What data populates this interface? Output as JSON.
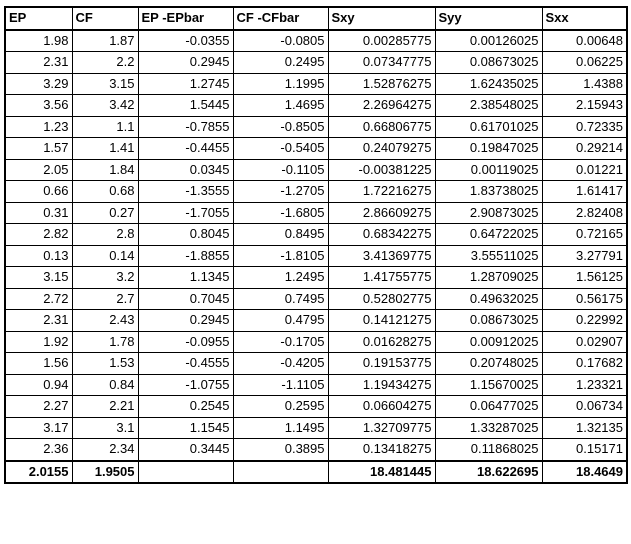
{
  "table": {
    "headers": [
      "EP",
      "CF",
      "EP -EPbar",
      "CF -CFbar",
      "Sxy",
      "Syy",
      "Sxx"
    ],
    "rows": [
      [
        "1.98",
        "1.87",
        "-0.0355",
        "-0.0805",
        "0.00285775",
        "0.00126025",
        "0.00648"
      ],
      [
        "2.31",
        "2.2",
        "0.2945",
        "0.2495",
        "0.07347775",
        "0.08673025",
        "0.06225"
      ],
      [
        "3.29",
        "3.15",
        "1.2745",
        "1.1995",
        "1.52876275",
        "1.62435025",
        "1.4388"
      ],
      [
        "3.56",
        "3.42",
        "1.5445",
        "1.4695",
        "2.26964275",
        "2.38548025",
        "2.15943"
      ],
      [
        "1.23",
        "1.1",
        "-0.7855",
        "-0.8505",
        "0.66806775",
        "0.61701025",
        "0.72335"
      ],
      [
        "1.57",
        "1.41",
        "-0.4455",
        "-0.5405",
        "0.24079275",
        "0.19847025",
        "0.29214"
      ],
      [
        "2.05",
        "1.84",
        "0.0345",
        "-0.1105",
        "-0.00381225",
        "0.00119025",
        "0.01221"
      ],
      [
        "0.66",
        "0.68",
        "-1.3555",
        "-1.2705",
        "1.72216275",
        "1.83738025",
        "1.61417"
      ],
      [
        "0.31",
        "0.27",
        "-1.7055",
        "-1.6805",
        "2.86609275",
        "2.90873025",
        "2.82408"
      ],
      [
        "2.82",
        "2.8",
        "0.8045",
        "0.8495",
        "0.68342275",
        "0.64722025",
        "0.72165"
      ],
      [
        "0.13",
        "0.14",
        "-1.8855",
        "-1.8105",
        "3.41369775",
        "3.55511025",
        "3.27791"
      ],
      [
        "3.15",
        "3.2",
        "1.1345",
        "1.2495",
        "1.41755775",
        "1.28709025",
        "1.56125"
      ],
      [
        "2.72",
        "2.7",
        "0.7045",
        "0.7495",
        "0.52802775",
        "0.49632025",
        "0.56175"
      ],
      [
        "2.31",
        "2.43",
        "0.2945",
        "0.4795",
        "0.14121275",
        "0.08673025",
        "0.22992"
      ],
      [
        "1.92",
        "1.78",
        "-0.0955",
        "-0.1705",
        "0.01628275",
        "0.00912025",
        "0.02907"
      ],
      [
        "1.56",
        "1.53",
        "-0.4555",
        "-0.4205",
        "0.19153775",
        "0.20748025",
        "0.17682"
      ],
      [
        "0.94",
        "0.84",
        "-1.0755",
        "-1.1105",
        "1.19434275",
        "1.15670025",
        "1.23321"
      ],
      [
        "2.27",
        "2.21",
        "0.2545",
        "0.2595",
        "0.06604275",
        "0.06477025",
        "0.06734"
      ],
      [
        "3.17",
        "3.1",
        "1.1545",
        "1.1495",
        "1.32709775",
        "1.33287025",
        "1.32135"
      ],
      [
        "2.36",
        "2.34",
        "0.3445",
        "0.3895",
        "0.13418275",
        "0.11868025",
        "0.15171"
      ]
    ],
    "totals": [
      "2.0155",
      "1.9505",
      "",
      "",
      "18.481445",
      "18.622695",
      "18.4649"
    ]
  }
}
